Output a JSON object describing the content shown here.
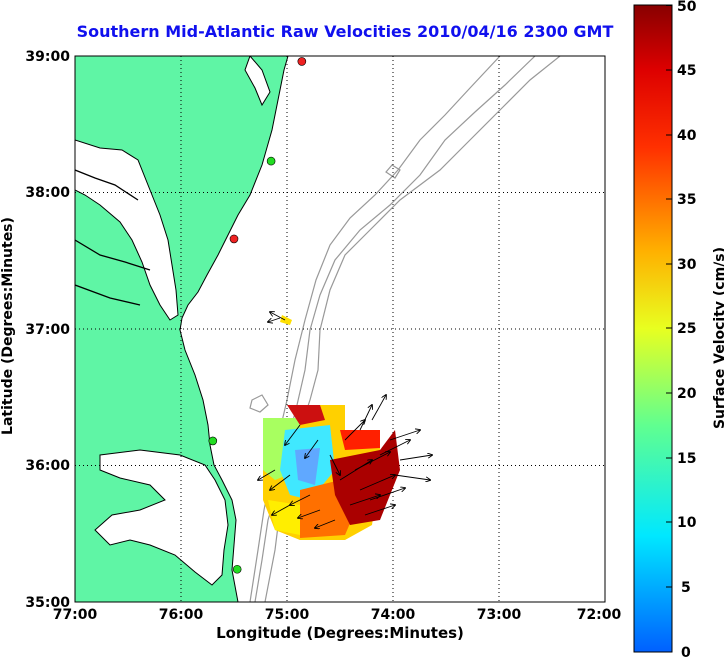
{
  "title": "Southern Mid-Atlantic Raw Velocities 2010/04/16 2300 GMT",
  "x_axis": {
    "label": "Longitude (Degrees:Minutes)",
    "ticks": [
      "77:00",
      "76:00",
      "75:00",
      "74:00",
      "73:00",
      "72:00"
    ]
  },
  "y_axis": {
    "label": "Latitude (Degrees:Minutes)",
    "ticks": [
      "39:00",
      "38:00",
      "37:00",
      "36:00",
      "35:00"
    ]
  },
  "colorbar": {
    "label": "Surface Velocity (cm/s)",
    "ticks": [
      "50",
      "45",
      "40",
      "35",
      "30",
      "25",
      "20",
      "15",
      "10",
      "5",
      "0"
    ],
    "min": 0,
    "max": 50
  },
  "map_extent": {
    "lon_west": -77,
    "lon_east": -72,
    "lat_south": 35,
    "lat_north": 39
  },
  "colors": {
    "land": "#5ff5a5",
    "coastline": "#000000",
    "bathymetry": "#999999",
    "grid": "#000000",
    "title": "#1010ee",
    "station_active": "#22dd22",
    "station_inactive": "#ee2222"
  },
  "stations": [
    {
      "name": "",
      "lon": -74.86,
      "lat": 38.96,
      "status": "inactive"
    },
    {
      "name": "",
      "lon": -75.15,
      "lat": 38.23,
      "status": "active"
    },
    {
      "name": "",
      "lon": -75.5,
      "lat": 37.66,
      "status": "inactive"
    },
    {
      "name": "",
      "lon": -75.7,
      "lat": 36.18,
      "status": "active"
    },
    {
      "name": "",
      "lon": -75.47,
      "lat": 35.24,
      "status": "active"
    }
  ]
}
